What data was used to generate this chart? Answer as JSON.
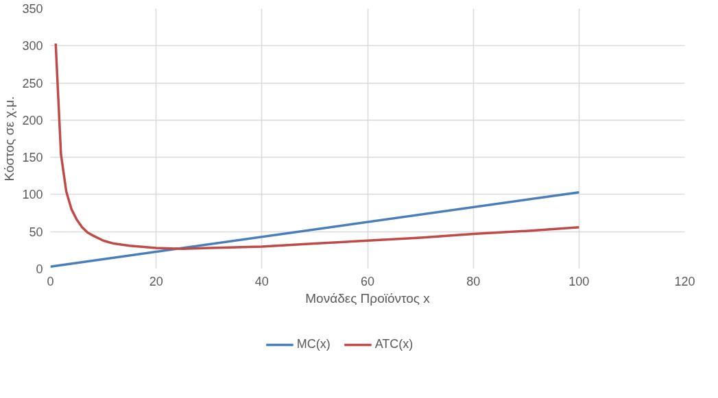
{
  "chart_data": {
    "type": "line",
    "xlabel": "Μονάδες Προϊόντος x",
    "ylabel": "Κόστος σε χ.μ.",
    "xlim": [
      0,
      120
    ],
    "xticks": [
      0,
      20,
      40,
      60,
      80,
      100,
      120
    ],
    "ylim": [
      0,
      350
    ],
    "yticks": [
      0,
      50,
      100,
      150,
      200,
      250,
      300,
      350
    ],
    "grid": true,
    "legend": "bottom",
    "marker": "none",
    "line_style": "solid",
    "series": [
      {
        "name": "MC(x)",
        "color": "#4a7ebb",
        "x": [
          0,
          100
        ],
        "values": [
          3,
          103
        ]
      },
      {
        "name": "ATC(x)",
        "color": "#be4b48",
        "x": [
          1,
          2,
          3,
          4,
          5,
          6,
          7,
          8,
          10,
          12,
          15,
          20,
          25,
          30,
          40,
          50,
          60,
          70,
          80,
          90,
          100
        ],
        "values": [
          303,
          154,
          104,
          80,
          66,
          56,
          49,
          45,
          38,
          34,
          31,
          28,
          27,
          28,
          30,
          34,
          38,
          42,
          47,
          51,
          56
        ]
      }
    ]
  }
}
